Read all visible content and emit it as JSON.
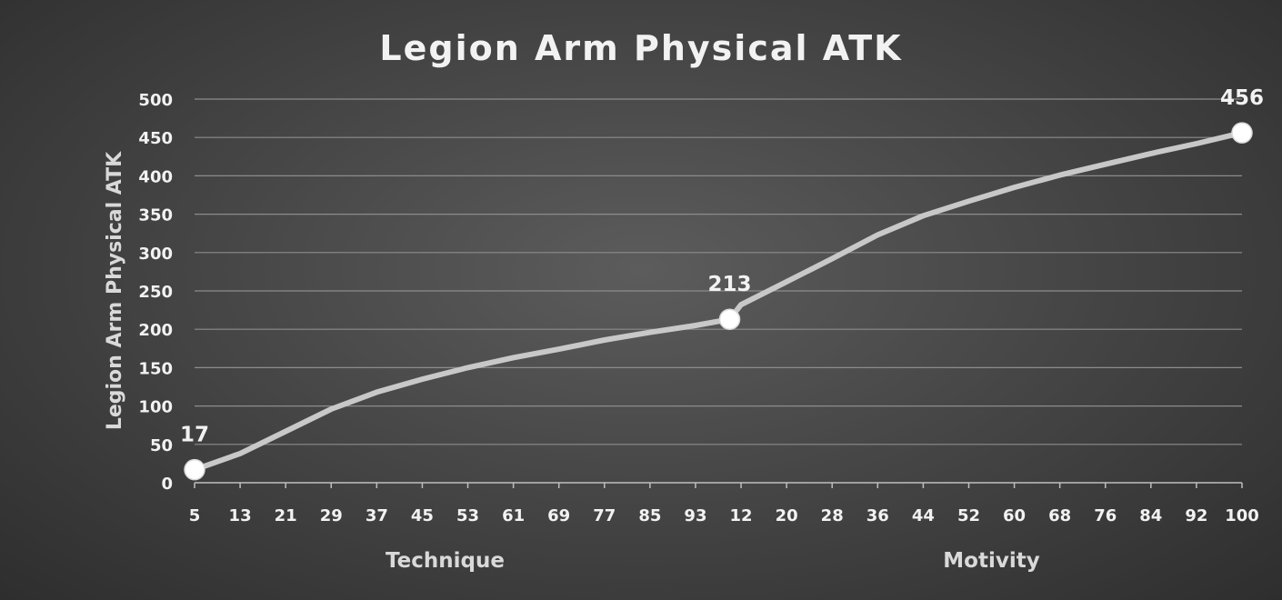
{
  "chart_data": {
    "type": "line",
    "title": "Legion Arm Physical ATK",
    "ylabel": "Legion Arm Physical ATK",
    "xlabel": "",
    "ylim": [
      0,
      500
    ],
    "y_ticks": [
      0,
      50,
      100,
      150,
      200,
      250,
      300,
      350,
      400,
      450,
      500
    ],
    "grid": true,
    "legend": "none",
    "line_color": "#c8c8c8",
    "category_groups": [
      {
        "name": "Technique",
        "x_tick_labels": [
          "5",
          "13",
          "21",
          "29",
          "37",
          "45",
          "53",
          "61",
          "69",
          "77",
          "85",
          "93"
        ]
      },
      {
        "name": "Motivity",
        "x_tick_labels": [
          "12",
          "20",
          "28",
          "36",
          "44",
          "52",
          "60",
          "68",
          "76",
          "84",
          "92",
          "100"
        ]
      }
    ],
    "series": [
      {
        "points": [
          {
            "group": "Technique",
            "x": 5,
            "y": 17
          },
          {
            "group": "Technique",
            "x": 13,
            "y": 38
          },
          {
            "group": "Technique",
            "x": 21,
            "y": 67
          },
          {
            "group": "Technique",
            "x": 29,
            "y": 96
          },
          {
            "group": "Technique",
            "x": 37,
            "y": 118
          },
          {
            "group": "Technique",
            "x": 45,
            "y": 135
          },
          {
            "group": "Technique",
            "x": 53,
            "y": 150
          },
          {
            "group": "Technique",
            "x": 61,
            "y": 163
          },
          {
            "group": "Technique",
            "x": 69,
            "y": 174
          },
          {
            "group": "Technique",
            "x": 77,
            "y": 186
          },
          {
            "group": "Technique",
            "x": 85,
            "y": 196
          },
          {
            "group": "Technique",
            "x": 93,
            "y": 205
          },
          {
            "group": "Technique",
            "x": 99,
            "y": 213
          },
          {
            "group": "Motivity",
            "x": 12,
            "y": 232
          },
          {
            "group": "Motivity",
            "x": 20,
            "y": 262
          },
          {
            "group": "Motivity",
            "x": 28,
            "y": 292
          },
          {
            "group": "Motivity",
            "x": 36,
            "y": 323
          },
          {
            "group": "Motivity",
            "x": 44,
            "y": 348
          },
          {
            "group": "Motivity",
            "x": 52,
            "y": 367
          },
          {
            "group": "Motivity",
            "x": 60,
            "y": 385
          },
          {
            "group": "Motivity",
            "x": 68,
            "y": 401
          },
          {
            "group": "Motivity",
            "x": 76,
            "y": 415
          },
          {
            "group": "Motivity",
            "x": 84,
            "y": 429
          },
          {
            "group": "Motivity",
            "x": 92,
            "y": 442
          },
          {
            "group": "Motivity",
            "x": 100,
            "y": 456
          }
        ]
      }
    ],
    "labeled_points": [
      {
        "group": "Technique",
        "x": 5,
        "y": 17,
        "label": "17"
      },
      {
        "group": "Technique",
        "x": 99,
        "y": 213,
        "label": "213"
      },
      {
        "group": "Motivity",
        "x": 100,
        "y": 456,
        "label": "456"
      }
    ]
  }
}
